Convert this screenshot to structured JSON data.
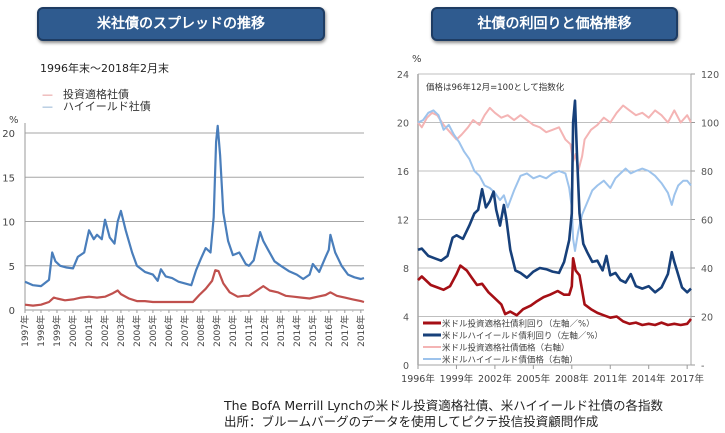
{
  "left_panel": {
    "banner": "米社債のスプレッドの推移",
    "period": "1996年末～2018年2月末"
  },
  "right_panel": {
    "banner": "社債の利回りと価格推移"
  },
  "footer": {
    "line1": "The BofA Merrill Lynchの米ドル投資適格社債、米ハイイールド社債の各指数",
    "line2": "出所：ブルームバーグのデータを使用してピクテ投信投資顧問作成"
  },
  "chart_data": [
    {
      "type": "line",
      "title": "米社債のスプレッドの推移",
      "subtitle": "1996年末～2018年2月末",
      "ylabel": "%",
      "ylim": [
        0,
        20
      ],
      "yticks": [
        "0",
        "5",
        "10",
        "15",
        "20"
      ],
      "xlim": [
        1997,
        2018.2
      ],
      "xticks": [
        "1997年",
        "1998年",
        "1999年",
        "2000年",
        "2001年",
        "2002年",
        "2003年",
        "2004年",
        "2005年",
        "2006年",
        "2007年",
        "2008年",
        "2009年",
        "2010年",
        "2011年",
        "2012年",
        "2013年",
        "2014年",
        "2015年",
        "2016年",
        "2017年",
        "2018年"
      ],
      "grid": true,
      "legend_position": "top-left",
      "series": [
        {
          "name": "投資適格社債",
          "color": "#c0504d",
          "x": [
            1997.0,
            1997.5,
            1998.0,
            1998.5,
            1998.8,
            1999.0,
            1999.5,
            2000.0,
            2000.5,
            2001.0,
            2001.5,
            2002.0,
            2002.5,
            2002.8,
            2003.0,
            2003.5,
            2004.0,
            2004.5,
            2005.0,
            2005.5,
            2006.0,
            2006.5,
            2007.0,
            2007.5,
            2007.9,
            2008.3,
            2008.7,
            2008.9,
            2009.1,
            2009.4,
            2009.8,
            2010.3,
            2010.7,
            2011.0,
            2011.5,
            2011.9,
            2012.3,
            2012.8,
            2013.3,
            2013.8,
            2014.3,
            2014.8,
            2015.3,
            2015.8,
            2016.1,
            2016.5,
            2017.0,
            2017.5,
            2018.0,
            2018.2
          ],
          "values": [
            0.6,
            0.5,
            0.6,
            0.9,
            1.4,
            1.3,
            1.1,
            1.2,
            1.4,
            1.5,
            1.4,
            1.5,
            1.9,
            2.2,
            1.8,
            1.3,
            1.0,
            1.0,
            0.9,
            0.9,
            0.9,
            0.9,
            0.9,
            0.9,
            1.7,
            2.4,
            3.3,
            4.5,
            4.4,
            3.0,
            2.0,
            1.5,
            1.6,
            1.6,
            2.2,
            2.7,
            2.2,
            2.0,
            1.6,
            1.5,
            1.4,
            1.3,
            1.5,
            1.7,
            2.0,
            1.6,
            1.4,
            1.2,
            1.0,
            0.9
          ]
        },
        {
          "name": "ハイイールド社債",
          "color": "#4a7ebb",
          "x": [
            1997.0,
            1997.5,
            1998.0,
            1998.5,
            1998.7,
            1998.9,
            1999.2,
            1999.6,
            2000.0,
            2000.3,
            2000.7,
            2001.0,
            2001.3,
            2001.5,
            2001.8,
            2002.0,
            2002.3,
            2002.6,
            2002.8,
            2003.0,
            2003.3,
            2003.7,
            2004.0,
            2004.5,
            2005.0,
            2005.3,
            2005.5,
            2005.8,
            2006.2,
            2006.6,
            2007.0,
            2007.4,
            2007.7,
            2008.0,
            2008.3,
            2008.6,
            2008.8,
            2008.95,
            2009.05,
            2009.2,
            2009.4,
            2009.7,
            2010.0,
            2010.4,
            2010.8,
            2011.0,
            2011.3,
            2011.7,
            2011.9,
            2012.2,
            2012.6,
            2013.0,
            2013.5,
            2014.0,
            2014.4,
            2014.8,
            2015.0,
            2015.4,
            2015.8,
            2016.0,
            2016.1,
            2016.4,
            2016.8,
            2017.2,
            2017.6,
            2018.0,
            2018.2
          ],
          "values": [
            3.2,
            2.8,
            2.7,
            3.4,
            6.5,
            5.5,
            5.0,
            4.8,
            4.7,
            6.0,
            6.5,
            9.0,
            8.0,
            8.5,
            8.0,
            10.2,
            8.2,
            7.5,
            10.0,
            11.2,
            9.0,
            6.5,
            5.0,
            4.3,
            4.0,
            3.3,
            4.6,
            3.8,
            3.6,
            3.2,
            3.0,
            2.8,
            4.5,
            5.8,
            7.0,
            6.5,
            10.5,
            19.0,
            20.8,
            17.5,
            11.0,
            7.8,
            6.2,
            6.5,
            5.2,
            5.0,
            5.6,
            8.8,
            7.8,
            6.8,
            5.5,
            5.0,
            4.4,
            4.0,
            3.5,
            4.0,
            5.2,
            4.3,
            6.0,
            6.8,
            8.5,
            6.5,
            5.0,
            4.0,
            3.7,
            3.5,
            3.6
          ]
        }
      ]
    },
    {
      "type": "line",
      "title": "社債の利回りと価格推移",
      "annotation": "価格は96年12月=100として指数化",
      "ylabel": "%",
      "ylim": [
        0,
        24
      ],
      "yticks": [
        "0",
        "4",
        "8",
        "12",
        "16",
        "20",
        "24"
      ],
      "y2lim": [
        0,
        120
      ],
      "y2ticks": [
        "-",
        "20",
        "40",
        "60",
        "80",
        "100",
        "120"
      ],
      "xlim": [
        1996,
        2017.3
      ],
      "xticks": [
        "1996年",
        "1999年",
        "2002年",
        "2005年",
        "2008年",
        "2011年",
        "2014年",
        "2017年"
      ],
      "grid": true,
      "legend_position": "bottom-left",
      "series": [
        {
          "name": "米ドル投資適格社債利回り（左軸／%）",
          "axis": "left",
          "color": "#a50f15",
          "x": [
            1996.0,
            1996.3,
            1997.0,
            1997.5,
            1998.0,
            1998.5,
            1999.0,
            1999.3,
            1999.8,
            2000.2,
            2000.6,
            2001.0,
            2001.5,
            2002.0,
            2002.5,
            2002.8,
            2003.2,
            2003.7,
            2004.2,
            2004.8,
            2005.2,
            2005.8,
            2006.3,
            2006.9,
            2007.4,
            2007.8,
            2008.0,
            2008.1,
            2008.3,
            2008.6,
            2009.0,
            2009.5,
            2010.0,
            2010.5,
            2011.0,
            2011.5,
            2012.0,
            2012.5,
            2013.0,
            2013.5,
            2014.0,
            2014.5,
            2015.0,
            2015.5,
            2016.0,
            2016.5,
            2017.0,
            2017.3
          ],
          "values": [
            7.0,
            7.3,
            6.6,
            6.4,
            6.2,
            6.5,
            7.5,
            8.2,
            7.8,
            7.2,
            6.6,
            6.7,
            6.0,
            5.5,
            5.0,
            4.2,
            4.4,
            4.1,
            4.6,
            4.9,
            5.2,
            5.6,
            5.8,
            6.1,
            5.8,
            5.8,
            6.5,
            8.8,
            7.8,
            7.4,
            5.0,
            4.6,
            4.3,
            4.1,
            3.9,
            4.0,
            3.6,
            3.4,
            3.5,
            3.3,
            3.4,
            3.3,
            3.5,
            3.3,
            3.4,
            3.3,
            3.4,
            3.8
          ]
        },
        {
          "name": "米ドルハイイールド債利回り（左軸／%）",
          "axis": "left",
          "color": "#17407a",
          "x": [
            1996.0,
            1996.3,
            1996.8,
            1997.3,
            1997.8,
            1998.3,
            1998.7,
            1999.0,
            1999.5,
            2000.0,
            2000.4,
            2000.7,
            2001.0,
            2001.3,
            2001.6,
            2001.9,
            2002.1,
            2002.4,
            2002.7,
            2002.9,
            2003.2,
            2003.6,
            2004.0,
            2004.5,
            2005.0,
            2005.5,
            2006.0,
            2006.5,
            2007.0,
            2007.4,
            2007.8,
            2008.0,
            2008.1,
            2008.25,
            2008.4,
            2008.6,
            2008.9,
            2009.2,
            2009.6,
            2010.0,
            2010.4,
            2010.7,
            2011.0,
            2011.4,
            2011.8,
            2012.2,
            2012.6,
            2013.0,
            2013.5,
            2014.0,
            2014.5,
            2015.0,
            2015.5,
            2015.8,
            2016.0,
            2016.2,
            2016.6,
            2017.0,
            2017.3
          ],
          "values": [
            9.5,
            9.6,
            9.0,
            8.8,
            8.6,
            9.0,
            10.5,
            10.7,
            10.4,
            11.5,
            12.5,
            12.8,
            14.5,
            13.0,
            13.5,
            14.3,
            12.8,
            11.5,
            13.2,
            12.0,
            9.5,
            7.8,
            7.6,
            7.2,
            7.7,
            8.0,
            7.9,
            7.7,
            7.6,
            8.5,
            10.3,
            12.5,
            20.0,
            21.8,
            17.5,
            12.5,
            10.0,
            9.3,
            8.5,
            8.6,
            7.8,
            9.0,
            7.4,
            7.6,
            7.0,
            6.8,
            7.5,
            6.5,
            6.3,
            6.5,
            6.0,
            6.4,
            7.5,
            9.3,
            8.5,
            7.8,
            6.4,
            6.0,
            6.3
          ]
        },
        {
          "name": "米ドル投資適格社債価格（右軸）",
          "axis": "right",
          "color": "#f4b4b4",
          "x": [
            1996.0,
            1996.3,
            1996.7,
            1997.1,
            1997.5,
            1998.0,
            1998.5,
            1999.0,
            1999.4,
            1999.9,
            2000.3,
            2000.8,
            2001.2,
            2001.6,
            2002.0,
            2002.5,
            2003.0,
            2003.5,
            2004.0,
            2004.5,
            2005.0,
            2005.5,
            2006.0,
            2006.5,
            2007.0,
            2007.5,
            2007.9,
            2008.1,
            2008.3,
            2008.5,
            2008.8,
            2009.0,
            2009.5,
            2010.0,
            2010.5,
            2011.0,
            2011.5,
            2012.0,
            2012.5,
            2013.0,
            2013.5,
            2014.0,
            2014.5,
            2015.0,
            2015.5,
            2016.0,
            2016.5,
            2017.0,
            2017.3
          ],
          "values": [
            100,
            98,
            102,
            104,
            103,
            99,
            96,
            93,
            95,
            98,
            101,
            99,
            103,
            106,
            104,
            102,
            103,
            101,
            103,
            101,
            99,
            98,
            96,
            97,
            98,
            93,
            91,
            84,
            87,
            80,
            86,
            93,
            97,
            99,
            102,
            100,
            104,
            107,
            105,
            103,
            104,
            102,
            105,
            103,
            100,
            105,
            100,
            103,
            100
          ]
        },
        {
          "name": "米ドルハイイールド債価格（右軸）",
          "axis": "right",
          "color": "#9dc3ec",
          "x": [
            1996.0,
            1996.4,
            1996.8,
            1997.2,
            1997.6,
            1998.0,
            1998.4,
            1998.8,
            1999.2,
            1999.6,
            2000.0,
            2000.4,
            2000.8,
            2001.2,
            2001.6,
            2002.0,
            2002.4,
            2002.7,
            2003.0,
            2003.5,
            2004.0,
            2004.5,
            2005.0,
            2005.5,
            2006.0,
            2006.5,
            2007.0,
            2007.5,
            2007.8,
            2008.0,
            2008.1,
            2008.25,
            2008.5,
            2008.8,
            2009.2,
            2009.6,
            2010.0,
            2010.5,
            2011.0,
            2011.4,
            2011.8,
            2012.2,
            2012.6,
            2013.0,
            2013.5,
            2014.0,
            2014.5,
            2015.0,
            2015.5,
            2015.8,
            2016.0,
            2016.3,
            2016.7,
            2017.0,
            2017.3
          ],
          "values": [
            100,
            101,
            104,
            105,
            103,
            97,
            99,
            95,
            92,
            88,
            85,
            80,
            78,
            74,
            73,
            71,
            68,
            70,
            65,
            72,
            78,
            79,
            77,
            78,
            77,
            79,
            80,
            79,
            73,
            65,
            52,
            47,
            55,
            62,
            67,
            72,
            74,
            76,
            73,
            77,
            79,
            81,
            79,
            80,
            81,
            80,
            78,
            75,
            71,
            66,
            70,
            74,
            76,
            76,
            74
          ]
        }
      ]
    }
  ]
}
